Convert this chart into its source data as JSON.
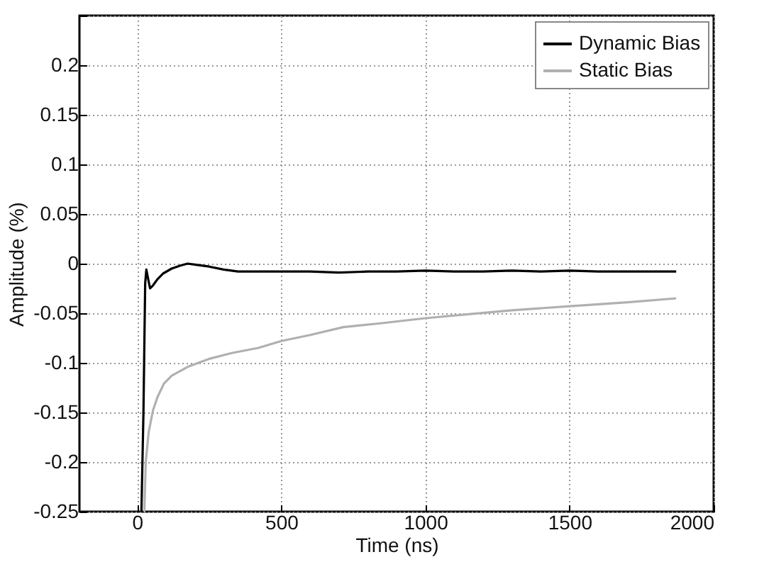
{
  "chart_data": {
    "type": "line",
    "xlabel": "Time (ns)",
    "ylabel": "Amplitude (%)",
    "xlim": [
      -200,
      2000
    ],
    "xticks": [
      0,
      500,
      1000,
      1500,
      2000
    ],
    "ylim": [
      -0.25,
      0.25
    ],
    "yticks": [
      -0.25,
      -0.2,
      -0.15,
      -0.1,
      -0.05,
      0,
      0.05,
      0.1,
      0.15,
      0.2,
      {
        "value": 0.25,
        "label": null
      }
    ],
    "grid": true,
    "legend": "top right",
    "series": [
      {
        "name": "Dynamic Bias",
        "color": "#000000",
        "x": [
          15,
          22,
          28,
          32,
          38,
          45,
          55,
          70,
          90,
          120,
          150,
          175,
          200,
          250,
          300,
          350,
          400,
          500,
          600,
          700,
          800,
          900,
          1000,
          1100,
          1200,
          1300,
          1400,
          1500,
          1600,
          1700,
          1800,
          1870
        ],
        "values": [
          -0.25,
          -0.15,
          -0.02,
          -0.006,
          -0.015,
          -0.025,
          -0.022,
          -0.016,
          -0.01,
          -0.005,
          -0.002,
          0,
          -0.001,
          -0.003,
          -0.006,
          -0.008,
          -0.008,
          -0.008,
          -0.008,
          -0.009,
          -0.008,
          -0.008,
          -0.007,
          -0.008,
          -0.008,
          -0.007,
          -0.008,
          -0.007,
          -0.008,
          -0.008,
          -0.008,
          -0.008
        ]
      },
      {
        "name": "Static Bias",
        "color": "#b0b0b0",
        "x": [
          25,
          30,
          40,
          55,
          70,
          93,
          120,
          176,
          250,
          330,
          420,
          500,
          600,
          715,
          850,
          1000,
          1150,
          1300,
          1500,
          1700,
          1870
        ],
        "values": [
          -0.25,
          -0.2,
          -0.17,
          -0.148,
          -0.135,
          -0.121,
          -0.113,
          -0.104,
          -0.096,
          -0.09,
          -0.085,
          -0.078,
          -0.072,
          -0.064,
          -0.06,
          -0.055,
          -0.051,
          -0.047,
          -0.043,
          -0.039,
          -0.035
        ]
      }
    ]
  }
}
